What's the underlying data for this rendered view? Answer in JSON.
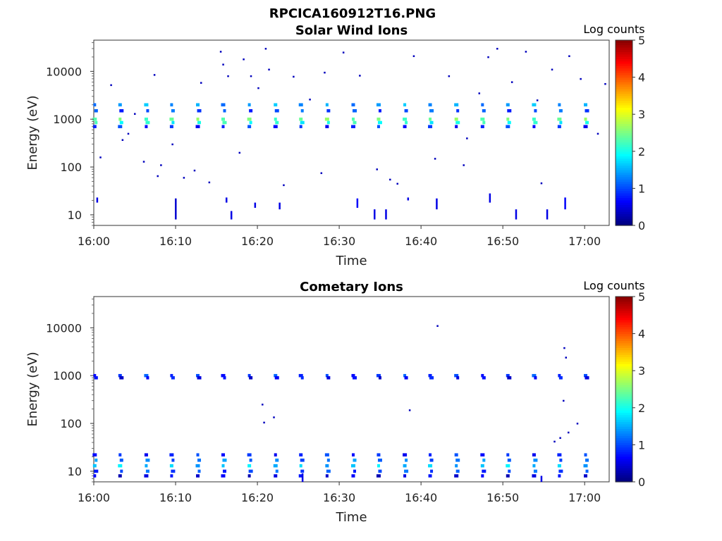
{
  "figure_title": "RPCICA160912T16.PNG",
  "chart_data": [
    {
      "type": "heatmap",
      "title": "Solar Wind Ions",
      "xlabel": "Time",
      "ylabel": "Energy (eV)",
      "x_ticks": [
        "16:00",
        "16:10",
        "16:20",
        "16:30",
        "16:40",
        "16:50",
        "17:00"
      ],
      "xlim_minutes": [
        0,
        63
      ],
      "y_scale": "log",
      "y_ticks": [
        10,
        100,
        1000,
        10000
      ],
      "y_tick_labels": [
        "10",
        "100",
        "1000",
        "10000"
      ],
      "ylim": [
        6,
        45000
      ],
      "colorbar": {
        "label": "Log counts",
        "range": [
          0,
          5
        ],
        "ticks": [
          "0",
          "1",
          "2",
          "3",
          "4",
          "5"
        ],
        "colormap": "jet"
      },
      "sweep_times_min": [
        0.2,
        3.3,
        6.5,
        9.6,
        12.8,
        15.9,
        19.1,
        22.3,
        25.4,
        28.6,
        31.8,
        34.9,
        38.1,
        41.2,
        44.4,
        47.6,
        50.7,
        53.9,
        57.0,
        60.2
      ],
      "sweep_bands": [
        {
          "energy_ev": 2000,
          "log_counts": 1.4
        },
        {
          "energy_ev": 1500,
          "log_counts": 1.0
        },
        {
          "energy_ev": 1000,
          "log_counts": 2.4
        },
        {
          "energy_ev": 850,
          "log_counts": 2.0
        },
        {
          "energy_ev": 700,
          "log_counts": 0.8
        }
      ],
      "low_energy_hits": [
        {
          "t": 0.4,
          "e_low": 18,
          "e_high": 23,
          "v": 0.5
        },
        {
          "t": 10.0,
          "e_low": 8,
          "e_high": 22,
          "v": 0.4
        },
        {
          "t": 16.2,
          "e_low": 18,
          "e_high": 23,
          "v": 0.5
        },
        {
          "t": 16.8,
          "e_low": 8,
          "e_high": 12,
          "v": 0.5
        },
        {
          "t": 19.7,
          "e_low": 14,
          "e_high": 18,
          "v": 0.5
        },
        {
          "t": 22.7,
          "e_low": 13,
          "e_high": 18,
          "v": 0.5
        },
        {
          "t": 32.2,
          "e_low": 14,
          "e_high": 22,
          "v": 0.6
        },
        {
          "t": 34.3,
          "e_low": 8,
          "e_high": 13,
          "v": 0.5
        },
        {
          "t": 35.7,
          "e_low": 8,
          "e_high": 13,
          "v": 0.5
        },
        {
          "t": 38.4,
          "e_low": 20,
          "e_high": 23,
          "v": 0.5
        },
        {
          "t": 41.9,
          "e_low": 13,
          "e_high": 22,
          "v": 0.5
        },
        {
          "t": 48.4,
          "e_low": 18,
          "e_high": 28,
          "v": 0.5
        },
        {
          "t": 51.6,
          "e_low": 8,
          "e_high": 13,
          "v": 0.5
        },
        {
          "t": 55.4,
          "e_low": 8,
          "e_high": 13,
          "v": 0.5
        },
        {
          "t": 57.6,
          "e_low": 13,
          "e_high": 23,
          "v": 0.6
        }
      ],
      "scattered_counts": [
        {
          "t": 2.1,
          "e": 5200
        },
        {
          "t": 3.5,
          "e": 370
        },
        {
          "t": 4.2,
          "e": 500
        },
        {
          "t": 5.0,
          "e": 1300
        },
        {
          "t": 6.1,
          "e": 130
        },
        {
          "t": 7.4,
          "e": 8500
        },
        {
          "t": 7.8,
          "e": 65
        },
        {
          "t": 8.2,
          "e": 110
        },
        {
          "t": 9.6,
          "e": 300
        },
        {
          "t": 11.0,
          "e": 60
        },
        {
          "t": 12.3,
          "e": 85
        },
        {
          "t": 13.1,
          "e": 5800
        },
        {
          "t": 14.1,
          "e": 48
        },
        {
          "t": 15.5,
          "e": 26000
        },
        {
          "t": 15.8,
          "e": 14000
        },
        {
          "t": 16.4,
          "e": 8000
        },
        {
          "t": 17.8,
          "e": 200
        },
        {
          "t": 18.3,
          "e": 18000
        },
        {
          "t": 19.2,
          "e": 8000
        },
        {
          "t": 20.1,
          "e": 4500
        },
        {
          "t": 21.0,
          "e": 30000
        },
        {
          "t": 21.4,
          "e": 11000
        },
        {
          "t": 23.2,
          "e": 42
        },
        {
          "t": 24.4,
          "e": 7800
        },
        {
          "t": 26.4,
          "e": 2600
        },
        {
          "t": 28.2,
          "e": 9500
        },
        {
          "t": 30.5,
          "e": 25000
        },
        {
          "t": 32.5,
          "e": 8200
        },
        {
          "t": 34.6,
          "e": 90
        },
        {
          "t": 37.1,
          "e": 45
        },
        {
          "t": 39.1,
          "e": 21000
        },
        {
          "t": 41.7,
          "e": 150
        },
        {
          "t": 43.4,
          "e": 8000
        },
        {
          "t": 45.2,
          "e": 110
        },
        {
          "t": 47.1,
          "e": 3500
        },
        {
          "t": 48.2,
          "e": 20000
        },
        {
          "t": 49.3,
          "e": 30000
        },
        {
          "t": 51.1,
          "e": 6000
        },
        {
          "t": 52.8,
          "e": 26000
        },
        {
          "t": 54.2,
          "e": 2500
        },
        {
          "t": 54.7,
          "e": 46
        },
        {
          "t": 56.0,
          "e": 11000
        },
        {
          "t": 58.1,
          "e": 21000
        },
        {
          "t": 59.5,
          "e": 7000
        },
        {
          "t": 61.6,
          "e": 500
        },
        {
          "t": 62.5,
          "e": 5500
        },
        {
          "t": 0.8,
          "e": 160
        },
        {
          "t": 45.6,
          "e": 400
        },
        {
          "t": 27.8,
          "e": 75
        },
        {
          "t": 36.2,
          "e": 55
        }
      ]
    },
    {
      "type": "heatmap",
      "title": "Cometary Ions",
      "xlabel": "Time",
      "ylabel": "Energy (eV)",
      "x_ticks": [
        "16:00",
        "16:10",
        "16:20",
        "16:30",
        "16:40",
        "16:50",
        "17:00"
      ],
      "xlim_minutes": [
        0,
        63
      ],
      "y_scale": "log",
      "y_ticks": [
        10,
        100,
        1000,
        10000
      ],
      "y_tick_labels": [
        "10",
        "100",
        "1000",
        "10000"
      ],
      "ylim": [
        6,
        45000
      ],
      "colorbar": {
        "label": "Log counts",
        "range": [
          0,
          5
        ],
        "ticks": [
          "0",
          "1",
          "2",
          "3",
          "4",
          "5"
        ],
        "colormap": "jet"
      },
      "sweep_times_min": [
        0.2,
        3.3,
        6.5,
        9.6,
        12.8,
        15.9,
        19.1,
        22.3,
        25.4,
        28.6,
        31.8,
        34.9,
        38.1,
        41.2,
        44.4,
        47.6,
        50.7,
        53.9,
        57.0,
        60.2
      ],
      "sweep_bands": [
        {
          "energy_ev": 1000,
          "log_counts": 0.9
        },
        {
          "energy_ev": 900,
          "log_counts": 0.6
        },
        {
          "energy_ev": 22,
          "log_counts": 0.8
        },
        {
          "energy_ev": 17,
          "log_counts": 1.2
        },
        {
          "energy_ev": 13,
          "log_counts": 1.6
        },
        {
          "energy_ev": 10,
          "log_counts": 1.0
        },
        {
          "energy_ev": 8,
          "log_counts": 0.5
        }
      ],
      "low_energy_hits": [
        {
          "t": 25.5,
          "e_low": 6,
          "e_high": 9,
          "v": 0.5
        },
        {
          "t": 54.7,
          "e_low": 6,
          "e_high": 8,
          "v": 0.5
        }
      ],
      "scattered_counts": [
        {
          "t": 42.0,
          "e": 11000
        },
        {
          "t": 57.5,
          "e": 3800
        },
        {
          "t": 57.7,
          "e": 2400
        },
        {
          "t": 20.6,
          "e": 250
        },
        {
          "t": 20.8,
          "e": 105
        },
        {
          "t": 22.0,
          "e": 135
        },
        {
          "t": 38.6,
          "e": 190
        },
        {
          "t": 57.4,
          "e": 300
        },
        {
          "t": 58.0,
          "e": 65
        },
        {
          "t": 59.1,
          "e": 100
        },
        {
          "t": 56.3,
          "e": 42
        },
        {
          "t": 57.0,
          "e": 50
        }
      ]
    }
  ]
}
